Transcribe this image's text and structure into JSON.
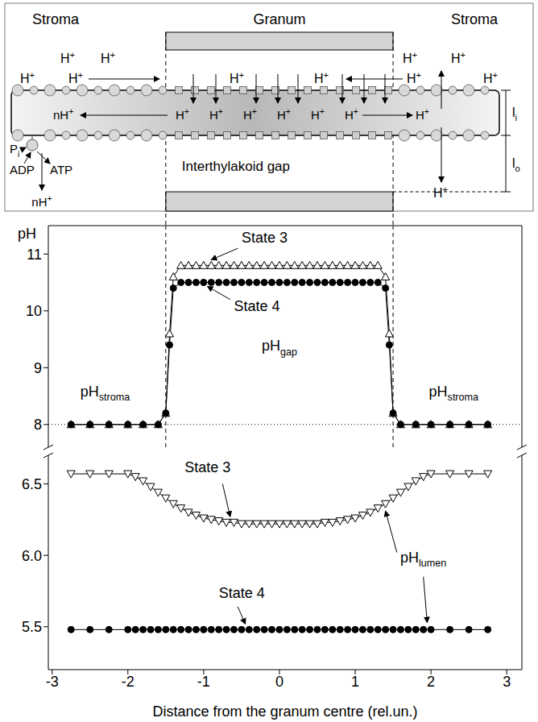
{
  "diagram": {
    "regions": [
      "Stroma",
      "Granum",
      "Stroma"
    ],
    "stroma_protons": [
      "H+",
      "H+",
      "H+",
      "H+",
      "H+",
      "H+",
      "H+",
      "H+",
      "H+",
      "H+"
    ],
    "lumen_protons": [
      "H+",
      "H+",
      "H+",
      "H+",
      "H+",
      "H+"
    ],
    "lumen_outflow": "nH+",
    "edge_protons": [
      "H+",
      "H+"
    ],
    "atp_synthase": {
      "inputs": [
        {
          "text": "P",
          "sub": "i"
        },
        "ADP"
      ],
      "output": "ATP",
      "released": "nH+"
    },
    "gap_label": "Interthylakoid gap",
    "dimensions": [
      {
        "text": "l",
        "sub": "i"
      },
      {
        "text": "l",
        "sub": "o"
      }
    ]
  },
  "chart_data": [
    {
      "type": "line",
      "ylabel": "pH",
      "xlim": [
        -3.05,
        3.2
      ],
      "ylim": [
        7.6,
        11.5
      ],
      "yticks": [
        8,
        9,
        10,
        11
      ],
      "tick_labels": "y",
      "hline": 8,
      "granum_edges": [
        -1.5,
        1.5
      ],
      "annotations": [
        {
          "text": "pH",
          "sub": "stroma"
        },
        {
          "text": "pH",
          "sub": "gap"
        },
        {
          "text": "pH",
          "sub": "stroma"
        }
      ],
      "series": [
        {
          "name": "State 3",
          "color": "#000000",
          "marker": "open_triangle_up",
          "line_style": "solid",
          "x": [
            -2.75,
            -2.5,
            -2.25,
            -2.0,
            -1.8,
            -1.6,
            -1.5,
            -1.45,
            -1.4,
            -1.3,
            -1.2,
            -1.1,
            -1.0,
            -0.9,
            -0.8,
            -0.7,
            -0.6,
            -0.5,
            -0.4,
            -0.3,
            -0.2,
            -0.1,
            0,
            0.1,
            0.2,
            0.3,
            0.4,
            0.5,
            0.6,
            0.7,
            0.8,
            0.9,
            1.0,
            1.1,
            1.2,
            1.3,
            1.4,
            1.45,
            1.5,
            1.6,
            1.8,
            2.0,
            2.25,
            2.5,
            2.75
          ],
          "values": [
            8,
            8,
            8,
            8,
            8,
            8,
            8.2,
            9.6,
            10.6,
            10.8,
            10.8,
            10.8,
            10.8,
            10.8,
            10.8,
            10.8,
            10.8,
            10.8,
            10.8,
            10.8,
            10.8,
            10.8,
            10.8,
            10.8,
            10.8,
            10.8,
            10.8,
            10.8,
            10.8,
            10.8,
            10.8,
            10.8,
            10.8,
            10.8,
            10.8,
            10.8,
            10.6,
            9.6,
            8.2,
            8,
            8,
            8,
            8,
            8,
            8
          ]
        },
        {
          "name": "State 4",
          "color": "#000000",
          "marker": "circle",
          "line_style": "solid",
          "x": [
            -2.75,
            -2.5,
            -2.25,
            -2.0,
            -1.8,
            -1.6,
            -1.5,
            -1.45,
            -1.4,
            -1.3,
            -1.2,
            -1.1,
            -1.0,
            -0.9,
            -0.8,
            -0.7,
            -0.6,
            -0.5,
            -0.4,
            -0.3,
            -0.2,
            -0.1,
            0,
            0.1,
            0.2,
            0.3,
            0.4,
            0.5,
            0.6,
            0.7,
            0.8,
            0.9,
            1.0,
            1.1,
            1.2,
            1.3,
            1.4,
            1.45,
            1.5,
            1.6,
            1.8,
            2.0,
            2.25,
            2.5,
            2.75
          ],
          "values": [
            8,
            8,
            8,
            8,
            8,
            8,
            8.2,
            9.4,
            10.4,
            10.5,
            10.5,
            10.5,
            10.5,
            10.5,
            10.5,
            10.5,
            10.5,
            10.5,
            10.5,
            10.5,
            10.5,
            10.5,
            10.5,
            10.5,
            10.5,
            10.5,
            10.5,
            10.5,
            10.5,
            10.5,
            10.5,
            10.5,
            10.5,
            10.5,
            10.5,
            10.5,
            10.4,
            9.4,
            8.2,
            8,
            8,
            8,
            8,
            8,
            8
          ]
        }
      ]
    },
    {
      "type": "line",
      "xlabel": "Distance from the granum centre (rel.un.)",
      "xlim": [
        -3.05,
        3.2
      ],
      "xticks": [
        -3,
        -2,
        -1,
        0,
        1,
        2,
        3
      ],
      "ylim": [
        5.2,
        6.7
      ],
      "yticks": [
        5.5,
        {
          "value": 6,
          "label": "6.0"
        },
        6.5
      ],
      "annotations": [
        {
          "text": "pH",
          "sub": "lumen"
        }
      ],
      "series": [
        {
          "name": "State 3",
          "color": "#000000",
          "marker": "open_triangle_down",
          "line_style": "solid",
          "x": [
            -2.75,
            -2.5,
            -2.25,
            -2.0,
            -1.9,
            -1.8,
            -1.7,
            -1.6,
            -1.5,
            -1.4,
            -1.3,
            -1.2,
            -1.1,
            -1.0,
            -0.9,
            -0.8,
            -0.7,
            -0.6,
            -0.5,
            -0.4,
            -0.3,
            -0.2,
            -0.1,
            0,
            0.1,
            0.2,
            0.3,
            0.4,
            0.5,
            0.6,
            0.7,
            0.8,
            0.9,
            1.0,
            1.1,
            1.2,
            1.3,
            1.4,
            1.5,
            1.6,
            1.7,
            1.8,
            1.9,
            2.0,
            2.25,
            2.5,
            2.75
          ],
          "values": [
            6.57,
            6.57,
            6.57,
            6.57,
            6.55,
            6.52,
            6.48,
            6.44,
            6.4,
            6.36,
            6.33,
            6.3,
            6.28,
            6.26,
            6.25,
            6.24,
            6.23,
            6.23,
            6.22,
            6.22,
            6.22,
            6.22,
            6.22,
            6.22,
            6.22,
            6.22,
            6.22,
            6.22,
            6.22,
            6.23,
            6.23,
            6.24,
            6.25,
            6.26,
            6.28,
            6.3,
            6.33,
            6.36,
            6.4,
            6.44,
            6.48,
            6.52,
            6.55,
            6.57,
            6.57,
            6.57,
            6.57
          ]
        },
        {
          "name": "State 4",
          "color": "#000000",
          "marker": "circle",
          "line_style": "solid",
          "x": [
            -2.75,
            -2.5,
            -2.25,
            -2.0,
            -1.9,
            -1.8,
            -1.7,
            -1.6,
            -1.5,
            -1.4,
            -1.3,
            -1.2,
            -1.1,
            -1.0,
            -0.9,
            -0.8,
            -0.7,
            -0.6,
            -0.5,
            -0.4,
            -0.3,
            -0.2,
            -0.1,
            0,
            0.1,
            0.2,
            0.3,
            0.4,
            0.5,
            0.6,
            0.7,
            0.8,
            0.9,
            1.0,
            1.1,
            1.2,
            1.3,
            1.4,
            1.5,
            1.6,
            1.7,
            1.8,
            1.9,
            2.0,
            2.25,
            2.5,
            2.75
          ],
          "values": [
            5.48,
            5.48,
            5.48,
            5.48,
            5.48,
            5.48,
            5.48,
            5.48,
            5.48,
            5.48,
            5.48,
            5.48,
            5.48,
            5.48,
            5.48,
            5.48,
            5.48,
            5.48,
            5.48,
            5.48,
            5.48,
            5.48,
            5.48,
            5.48,
            5.48,
            5.48,
            5.48,
            5.48,
            5.48,
            5.48,
            5.48,
            5.48,
            5.48,
            5.48,
            5.48,
            5.48,
            5.48,
            5.48,
            5.48,
            5.48,
            5.48,
            5.48,
            5.48,
            5.48,
            5.48,
            5.48,
            5.48
          ]
        }
      ]
    }
  ]
}
